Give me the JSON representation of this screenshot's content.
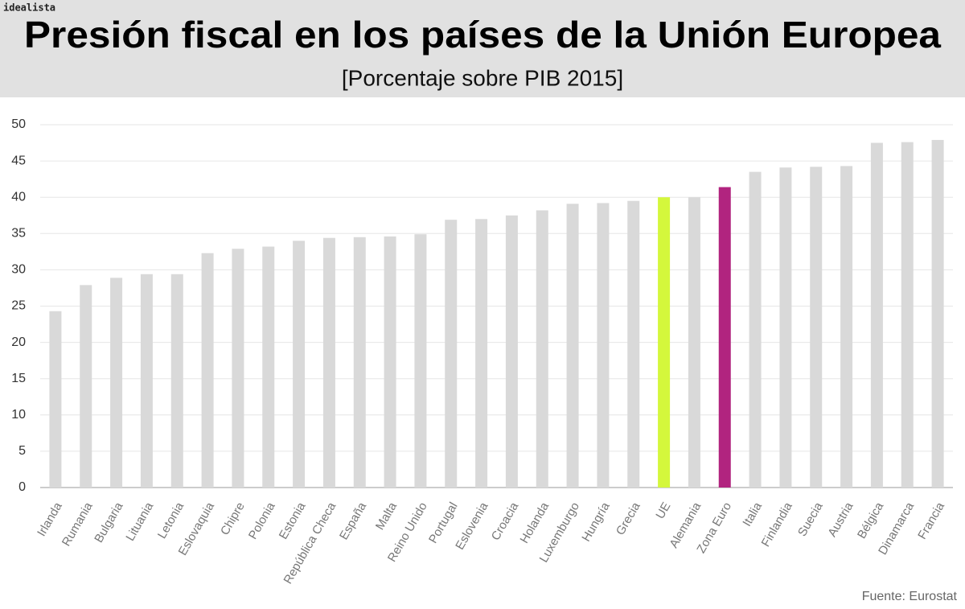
{
  "brand": "idealista",
  "chart_data": {
    "type": "bar",
    "title": "Presión fiscal en los países de la Unión Europea",
    "subtitle": "[Porcentaje sobre PIB 2015]",
    "source": "Fuente: Eurostat",
    "categories": [
      "Irlanda",
      "Rumania",
      "Bulgaria",
      "Lituania",
      "Letonia",
      "Eslovaquia",
      "Chipre",
      "Polonia",
      "Estonia",
      "República Checa",
      "España",
      "Malta",
      "Reino Unido",
      "Portugal",
      "Eslovenia",
      "Croacia",
      "Holanda",
      "Luxemburgo",
      "Hungría",
      "Grecia",
      "UE",
      "Alemania",
      "Zona Euro",
      "Italia",
      "Finlandia",
      "Suecia",
      "Austria",
      "Bélgica",
      "Dinamarca",
      "Francia"
    ],
    "values": [
      24.3,
      27.9,
      28.9,
      29.4,
      29.4,
      32.3,
      32.9,
      33.2,
      34.0,
      34.4,
      34.5,
      34.6,
      34.9,
      36.9,
      37.0,
      37.5,
      38.2,
      39.1,
      39.2,
      39.5,
      40.0,
      40.0,
      41.4,
      43.5,
      44.1,
      44.2,
      44.3,
      47.5,
      47.6,
      47.9
    ],
    "colors": [
      "#d9d9d9",
      "#d9d9d9",
      "#d9d9d9",
      "#d9d9d9",
      "#d9d9d9",
      "#d9d9d9",
      "#d9d9d9",
      "#d9d9d9",
      "#d9d9d9",
      "#d9d9d9",
      "#d9d9d9",
      "#d9d9d9",
      "#d9d9d9",
      "#d9d9d9",
      "#d9d9d9",
      "#d9d9d9",
      "#d9d9d9",
      "#d9d9d9",
      "#d9d9d9",
      "#d9d9d9",
      "#d4f73c",
      "#d9d9d9",
      "#b1247f",
      "#d9d9d9",
      "#d9d9d9",
      "#d9d9d9",
      "#d9d9d9",
      "#d9d9d9",
      "#d9d9d9",
      "#d9d9d9"
    ],
    "ylim": [
      0,
      50
    ],
    "yticks": [
      0,
      5,
      10,
      15,
      20,
      25,
      30,
      35,
      40,
      45,
      50
    ],
    "grid": true
  }
}
